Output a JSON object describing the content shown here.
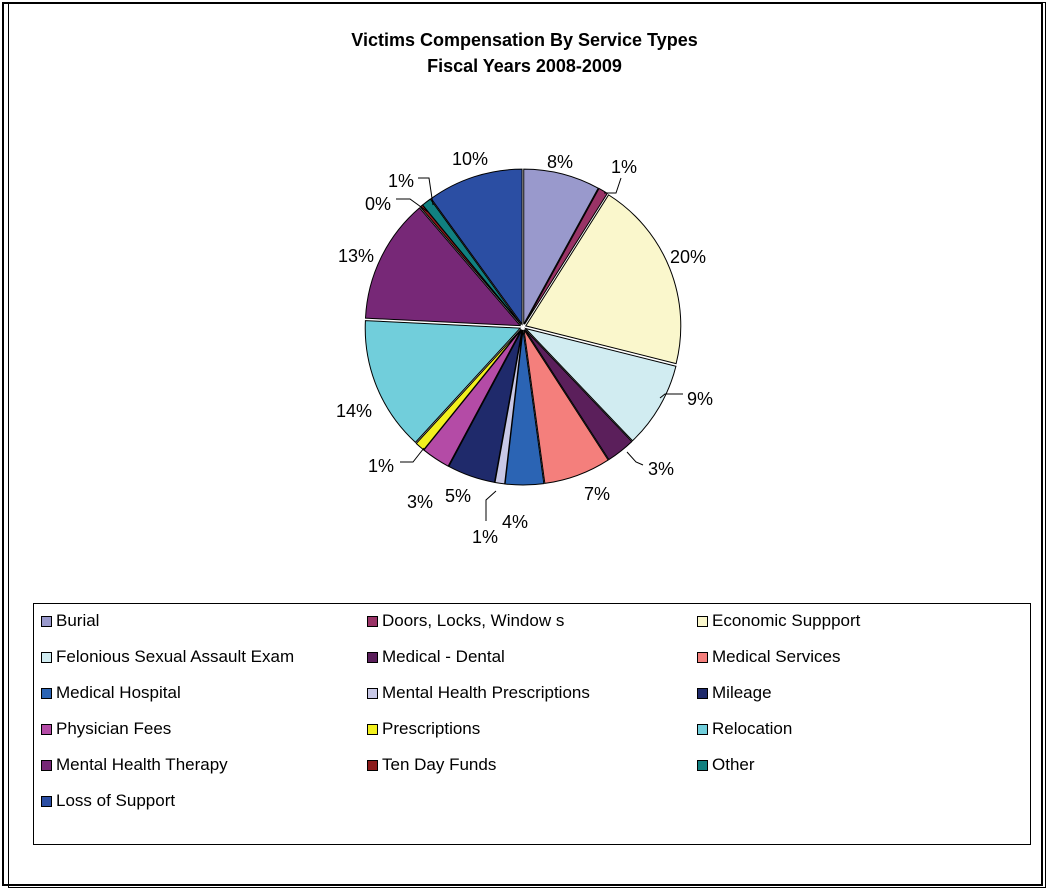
{
  "chart_data": {
    "type": "pie",
    "title": "Victims Compensation By Service Types",
    "subtitle": "Fiscal Years 2008-2009",
    "legend_position": "bottom",
    "slices": [
      {
        "name": "Burial",
        "value": 8,
        "label": "8%",
        "color": "#9999CC"
      },
      {
        "name": "Doors, Locks, Window s",
        "value": 1,
        "label": "1%",
        "color": "#993366"
      },
      {
        "name": "Economic Suppport",
        "value": 20,
        "label": "20%",
        "color": "#FAF7CC"
      },
      {
        "name": "Felonious Sexual Assault Exam",
        "value": 9,
        "label": "9%",
        "color": "#D1ECF1"
      },
      {
        "name": "Medical - Dental",
        "value": 3,
        "label": "3%",
        "color": "#5B1F5B"
      },
      {
        "name": "Medical Services",
        "value": 7,
        "label": "7%",
        "color": "#F47F7C"
      },
      {
        "name": "Medical Hospital",
        "value": 4,
        "label": "4%",
        "color": "#2B64B4"
      },
      {
        "name": "Mental Health Prescriptions",
        "value": 1,
        "label": "1%",
        "color": "#C8C8E6"
      },
      {
        "name": "Mileage",
        "value": 5,
        "label": "5%",
        "color": "#1F2A6B"
      },
      {
        "name": "Physician Fees",
        "value": 3,
        "label": "3%",
        "color": "#B44BA6"
      },
      {
        "name": "Prescriptions",
        "value": 1,
        "label": "1%",
        "color": "#F2F01E"
      },
      {
        "name": "Relocation",
        "value": 14,
        "label": "14%",
        "color": "#71CEDB"
      },
      {
        "name": "Mental Health Therapy",
        "value": 13,
        "label": "13%",
        "color": "#772877"
      },
      {
        "name": "Ten Day Funds",
        "value": 0,
        "label": "0%",
        "color": "#8B1A1A"
      },
      {
        "name": "Other",
        "value": 1,
        "label": "1%",
        "color": "#118080"
      },
      {
        "name": "Loss of Support",
        "value": 10,
        "label": "10%",
        "color": "#2B4EA3"
      }
    ]
  }
}
